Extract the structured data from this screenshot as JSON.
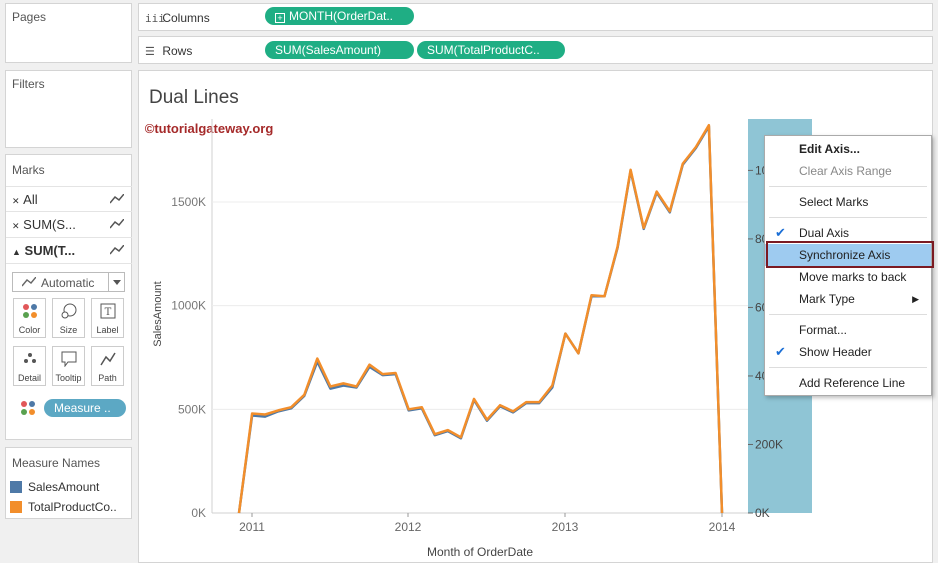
{
  "pages_card": {
    "title": "Pages"
  },
  "filters_card": {
    "title": "Filters"
  },
  "columns_shelf": {
    "label": "Columns",
    "pills": [
      "MONTH(OrderDat.."
    ]
  },
  "rows_shelf": {
    "label": "Rows",
    "pills": [
      "SUM(SalesAmount)",
      "SUM(TotalProductC.."
    ]
  },
  "marks_card": {
    "title": "Marks",
    "rows": [
      "All",
      "SUM(S...",
      "SUM(T..."
    ],
    "mark_type": "Automatic",
    "buttons": [
      "Color",
      "Size",
      "Label",
      "Detail",
      "Tooltip",
      "Path"
    ],
    "measure_pill": "Measure .."
  },
  "legend_card": {
    "title": "Measure Names",
    "items": [
      {
        "label": "SalesAmount",
        "color": "#4e79a7"
      },
      {
        "label": "TotalProductCo..",
        "color": "#f28e2b"
      }
    ]
  },
  "worksheet": {
    "title": "Dual Lines",
    "watermark": "©tutorialgateway.org"
  },
  "chart_data": {
    "type": "line",
    "xlabel": "Month of OrderDate",
    "ylabel": "SalesAmount",
    "x_ticks": [
      "2011",
      "2012",
      "2013",
      "2014"
    ],
    "y_ticks": [
      "0K",
      "500K",
      "1000K",
      "1500K"
    ],
    "ylim": [
      0,
      1900000
    ],
    "right_axis_ticks": [
      "0K",
      "200K",
      "40",
      "60",
      "80",
      "10"
    ],
    "right_ylim": [
      0,
      1900000
    ],
    "series": [
      {
        "name": "SalesAmount",
        "color": "#4e79a7",
        "values": [
          0,
          470000,
          465000,
          490000,
          505000,
          565000,
          730000,
          600000,
          615000,
          605000,
          705000,
          665000,
          670000,
          495000,
          505000,
          375000,
          395000,
          360000,
          545000,
          445000,
          515000,
          485000,
          530000,
          530000,
          605000,
          865000,
          770000,
          1045000,
          1045000,
          1280000,
          1650000,
          1370000,
          1545000,
          1450000,
          1680000,
          1760000,
          1865000,
          0
        ]
      },
      {
        "name": "TotalProductCo..",
        "color": "#f28e2b",
        "values": [
          0,
          480000,
          475000,
          495000,
          510000,
          570000,
          745000,
          610000,
          625000,
          610000,
          715000,
          670000,
          675000,
          500000,
          510000,
          380000,
          400000,
          365000,
          550000,
          450000,
          520000,
          490000,
          535000,
          535000,
          615000,
          865000,
          770000,
          1050000,
          1045000,
          1285000,
          1655000,
          1375000,
          1550000,
          1455000,
          1685000,
          1765000,
          1870000,
          0
        ]
      }
    ]
  },
  "context_menu": {
    "items": [
      {
        "label": "Edit Axis...",
        "state": "bold"
      },
      {
        "label": "Clear Axis Range",
        "state": "disabled"
      },
      {
        "label": "Select Marks",
        "state": ""
      },
      {
        "label": "Dual Axis",
        "state": "checked"
      },
      {
        "label": "Synchronize Axis",
        "state": "highlighted"
      },
      {
        "label": "Move marks to back",
        "state": ""
      },
      {
        "label": "Mark Type",
        "state": "submenu"
      },
      {
        "label": "Format...",
        "state": ""
      },
      {
        "label": "Show Header",
        "state": "checked"
      },
      {
        "label": "Add Reference Line",
        "state": ""
      }
    ]
  },
  "colors": {
    "pill_green": "#1fae84",
    "axis_band": "#8fc5d5",
    "highlight": "#9ecbf0",
    "outline": "#7b1a22"
  }
}
